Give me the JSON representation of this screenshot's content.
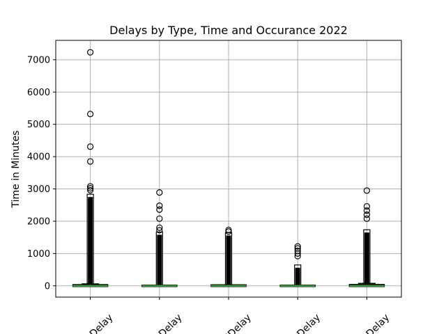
{
  "chart_data": {
    "type": "box",
    "title": "Delays by Type, Time and Occurance 2022",
    "ylabel": "Time in Minutes",
    "xlabel": "",
    "ylim": [
      -350,
      7600
    ],
    "yticks": [
      0,
      1000,
      2000,
      3000,
      4000,
      5000,
      6000,
      7000
    ],
    "grid": true,
    "categories": [
      "CarrierDelay",
      "WeatherDelay",
      "NASDelay",
      "SecurityDelay",
      "LateAircraftDelay"
    ],
    "category_labels_visible": [
      "ierDelay",
      "erDelay",
      "ASDelay",
      "ityDelay",
      "ftDelay"
    ],
    "series": [
      {
        "q1": 0,
        "median": 0,
        "q3": 16,
        "whisker_low": 0,
        "whisker_high": 60,
        "outliers_dense_max": 2750,
        "outliers": [
          7230,
          5320,
          4310,
          3850,
          3080,
          3020,
          2960
        ]
      },
      {
        "q1": 0,
        "median": 0,
        "q3": 0,
        "whisker_low": 0,
        "whisker_high": 0,
        "outliers_dense_max": 1580,
        "outliers": [
          2890,
          2480,
          2360,
          2080,
          1800,
          1720
        ]
      },
      {
        "q1": 0,
        "median": 0,
        "q3": 10,
        "whisker_low": 0,
        "whisker_high": 30,
        "outliers_dense_max": 1560,
        "outliers": [
          1730,
          1680
        ]
      },
      {
        "q1": 0,
        "median": 0,
        "q3": 0,
        "whisker_low": 0,
        "whisker_high": 0,
        "outliers_dense_max": 560,
        "outliers": [
          1220,
          1160,
          1080,
          1000,
          920
        ]
      },
      {
        "q1": 0,
        "median": 0,
        "q3": 20,
        "whisker_low": 0,
        "whisker_high": 75,
        "outliers_dense_max": 1650,
        "outliers": [
          2950,
          2460,
          2330,
          2200,
          2080
        ]
      }
    ],
    "colors": {
      "box": "#000000",
      "median": "#2ca02c",
      "grid": "#b0b0b0",
      "outlier": "#000000"
    }
  }
}
